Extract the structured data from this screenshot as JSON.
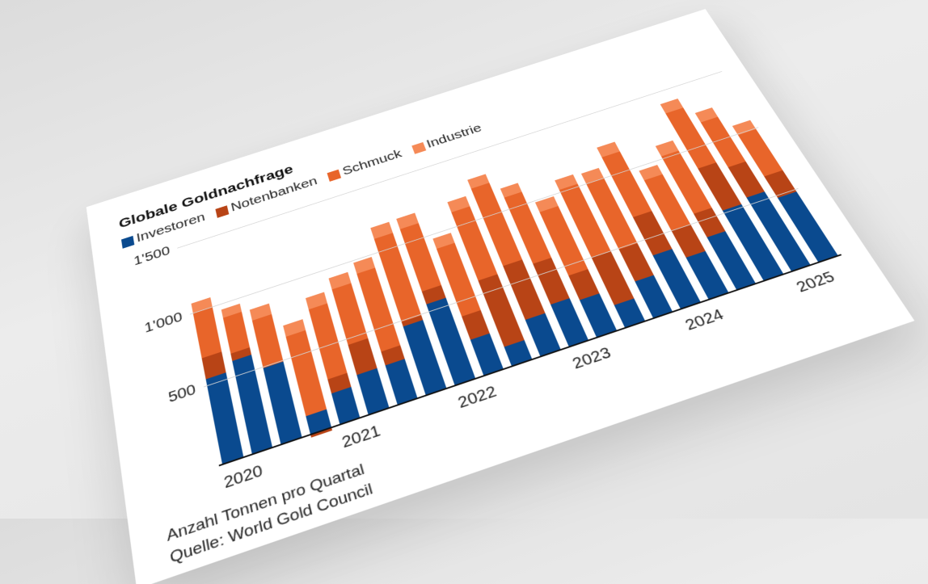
{
  "chart_data": {
    "type": "bar",
    "stacked": true,
    "title": "Globale Goldnachfrage",
    "subtitle": "",
    "xlabel": "",
    "ylabel": "",
    "note": "Anzahl Tonnen pro Quartal",
    "source": "Quelle: World Gold Council",
    "ylim": [
      0,
      1500
    ],
    "yticks": [
      500,
      1000,
      1500
    ],
    "ytick_labels": [
      "500",
      "1'000",
      "1'500"
    ],
    "grid": true,
    "legend_position": "top-left",
    "categories": [
      "Q1 2020",
      "Q2 2020",
      "Q3 2020",
      "Q4 2020",
      "Q1 2021",
      "Q2 2021",
      "Q3 2021",
      "Q4 2021",
      "Q1 2022",
      "Q2 2022",
      "Q3 2022",
      "Q4 2022",
      "Q1 2023",
      "Q2 2023",
      "Q3 2023",
      "Q4 2023",
      "Q1 2024",
      "Q2 2024",
      "Q3 2024",
      "Q4 2024",
      "Q1 2025",
      "Q2 2025"
    ],
    "x_year_labels": [
      {
        "label": "2020",
        "index": 0
      },
      {
        "label": "2021",
        "index": 4
      },
      {
        "label": "2022",
        "index": 8
      },
      {
        "label": "2023",
        "index": 12
      },
      {
        "label": "2024",
        "index": 16
      },
      {
        "label": "2025",
        "index": 20
      }
    ],
    "series": [
      {
        "name": "Investoren",
        "color": "#0A4A8F",
        "values": [
          540,
          600,
          490,
          120,
          200,
          260,
          260,
          460,
          550,
          240,
          130,
          250,
          290,
          260,
          160,
          260,
          380,
          300,
          380,
          520,
          550,
          480
        ]
      },
      {
        "name": "Notenbanken",
        "color": "#B84416",
        "values": [
          140,
          50,
          0,
          -15,
          90,
          200,
          90,
          30,
          90,
          160,
          460,
          380,
          290,
          170,
          340,
          230,
          290,
          200,
          180,
          330,
          240,
          170
        ]
      },
      {
        "name": "Schmuck",
        "color": "#E8652A",
        "values": [
          320,
          250,
          330,
          520,
          480,
          390,
          550,
          610,
          470,
          490,
          520,
          600,
          510,
          480,
          520,
          510,
          480,
          390,
          460,
          470,
          380,
          340
        ]
      },
      {
        "name": "Industrie",
        "color": "#F58A57",
        "values": [
          70,
          60,
          75,
          80,
          80,
          80,
          80,
          85,
          80,
          80,
          80,
          75,
          75,
          75,
          75,
          80,
          80,
          80,
          85,
          80,
          80,
          80
        ]
      }
    ]
  },
  "footer": {
    "line1": "Anzahl Tonnen pro Quartal",
    "line2": "Quelle: World Gold Council"
  }
}
